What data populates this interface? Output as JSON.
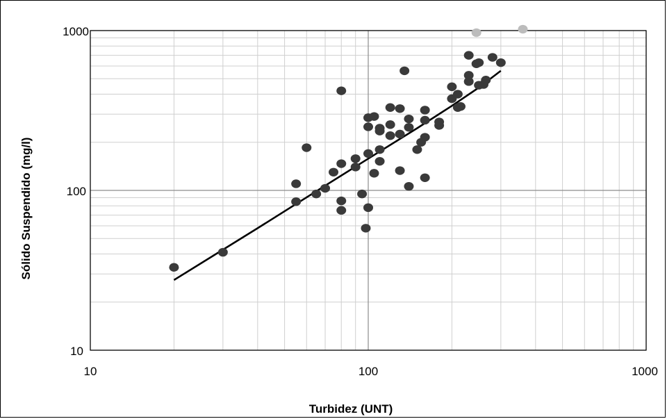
{
  "chart_data": {
    "type": "scatter",
    "title": "",
    "xlabel": "Turbidez (UNT)",
    "ylabel": "Sólido Suspendido (mg/l)",
    "xscale": "log",
    "yscale": "log",
    "xlim": [
      10,
      1000
    ],
    "ylim": [
      10,
      1000
    ],
    "x_ticks": [
      "10",
      "100",
      "1000"
    ],
    "y_ticks": [
      "10",
      "100",
      "1000"
    ],
    "grid": "major and minor",
    "legend": "none",
    "colors": {
      "points": "#3a3a3a",
      "outliers": "#bcbcbc",
      "trendline": "#000000",
      "major_grid": "#8c8c8c",
      "minor_grid": "#cfcfcf"
    },
    "series": [
      {
        "type": "scatter",
        "points": [
          [
            20,
            33
          ],
          [
            30,
            41
          ],
          [
            55,
            85
          ],
          [
            55,
            110
          ],
          [
            60,
            185
          ],
          [
            65,
            95
          ],
          [
            70,
            103
          ],
          [
            75,
            130
          ],
          [
            80,
            420
          ],
          [
            80,
            147
          ],
          [
            80,
            86
          ],
          [
            80,
            75
          ],
          [
            90,
            140
          ],
          [
            90,
            158
          ],
          [
            95,
            95
          ],
          [
            98,
            58
          ],
          [
            100,
            285
          ],
          [
            100,
            250
          ],
          [
            100,
            170
          ],
          [
            100,
            78
          ],
          [
            105,
            290
          ],
          [
            105,
            128
          ],
          [
            110,
            245
          ],
          [
            110,
            235
          ],
          [
            110,
            180
          ],
          [
            110,
            152
          ],
          [
            120,
            330
          ],
          [
            120,
            258
          ],
          [
            120,
            220
          ],
          [
            130,
            325
          ],
          [
            130,
            225
          ],
          [
            130,
            133
          ],
          [
            135,
            560
          ],
          [
            140,
            280
          ],
          [
            140,
            248
          ],
          [
            140,
            106
          ],
          [
            150,
            180
          ],
          [
            155,
            200
          ],
          [
            160,
            318
          ],
          [
            160,
            275
          ],
          [
            160,
            215
          ],
          [
            160,
            120
          ],
          [
            180,
            268
          ],
          [
            180,
            255
          ],
          [
            200,
            445
          ],
          [
            200,
            375
          ],
          [
            210,
            400
          ],
          [
            210,
            330
          ],
          [
            215,
            335
          ],
          [
            230,
            700
          ],
          [
            230,
            525
          ],
          [
            230,
            480
          ],
          [
            245,
            620
          ],
          [
            250,
            455
          ],
          [
            250,
            630
          ],
          [
            260,
            460
          ],
          [
            265,
            490
          ],
          [
            280,
            680
          ],
          [
            300,
            630
          ]
        ]
      },
      {
        "type": "scatter",
        "points": [
          [
            245,
            970
          ],
          [
            360,
            1020
          ]
        ]
      },
      {
        "type": "line",
        "points": [
          [
            20,
            27.5
          ],
          [
            40,
            58
          ],
          [
            70,
            107
          ],
          [
            100,
            158
          ],
          [
            150,
            245
          ],
          [
            200,
            338
          ],
          [
            250,
            440
          ],
          [
            300,
            560
          ]
        ]
      }
    ]
  }
}
